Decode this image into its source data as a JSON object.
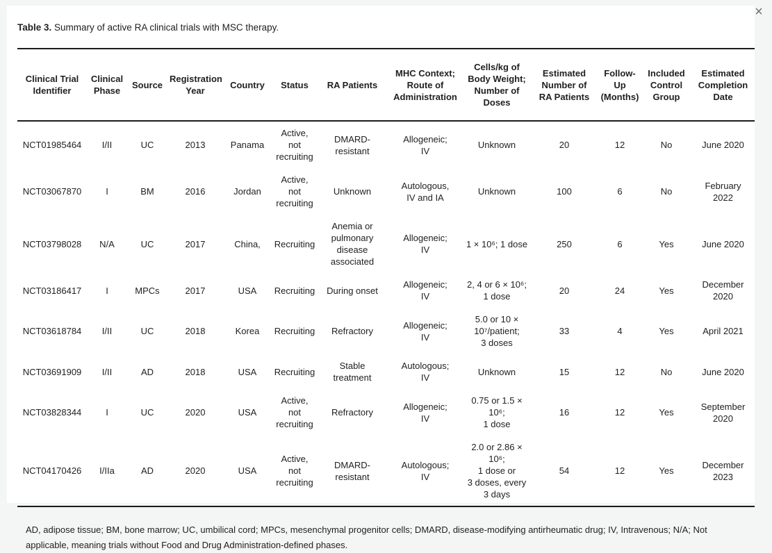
{
  "colors": {
    "page_background": "#f4f5f5",
    "panel_background": "#ffffff",
    "table_rule": "#1b1b1b",
    "text": "#212121",
    "close_icon": "#6e6e6e"
  },
  "modal": {
    "close_icon": "×"
  },
  "caption": {
    "label": "Table 3.",
    "text": " Summary of active RA clinical trials with MSC therapy."
  },
  "table": {
    "columns": [
      "Clinical Trial\nIdentifier",
      "Clinical\nPhase",
      "Source",
      "Registration\nYear",
      "Country",
      "Status",
      "RA Patients",
      "MHC Context;\nRoute of\nAdministration",
      "Cells/kg of\nBody Weight;\nNumber of\nDoses",
      "Estimated\nNumber of\nRA Patients",
      "Follow-\nUp\n(Months)",
      "Included\nControl\nGroup",
      "Estimated\nCompletion\nDate"
    ],
    "rows": [
      [
        "NCT01985464",
        "I/II",
        "UC",
        "2013",
        "Panama",
        "Active, not\nrecruiting",
        "DMARD-\nresistant",
        "Allogeneic;\nIV",
        "Unknown",
        "20",
        "12",
        "No",
        "June 2020"
      ],
      [
        "NCT03067870",
        "I",
        "BM",
        "2016",
        "Jordan",
        "Active, not\nrecruiting",
        "Unknown",
        "Autologous,\nIV and IA",
        "Unknown",
        "100",
        "6",
        "No",
        "February\n2022"
      ],
      [
        "NCT03798028",
        "N/A",
        "UC",
        "2017",
        "China,",
        "Recruiting",
        "Anemia or\npulmonary\ndisease\nassociated",
        "Allogeneic;\nIV",
        "1 × 10⁶; 1 dose",
        "250",
        "6",
        "Yes",
        "June 2020"
      ],
      [
        "NCT03186417",
        "I",
        "MPCs",
        "2017",
        "USA",
        "Recruiting",
        "During onset",
        "Allogeneic;\nIV",
        "2, 4 or 6 × 10⁶;\n1 dose",
        "20",
        "24",
        "Yes",
        "December\n2020"
      ],
      [
        "NCT03618784",
        "I/II",
        "UC",
        "2018",
        "Korea",
        "Recruiting",
        "Refractory",
        "Allogeneic;\nIV",
        "5.0 or 10 ×\n10⁷/patient;\n3 doses",
        "33",
        "4",
        "Yes",
        "April 2021"
      ],
      [
        "NCT03691909",
        "I/II",
        "AD",
        "2018",
        "USA",
        "Recruiting",
        "Stable\ntreatment",
        "Autologous;\nIV",
        "Unknown",
        "15",
        "12",
        "No",
        "June 2020"
      ],
      [
        "NCT03828344",
        "I",
        "UC",
        "2020",
        "USA",
        "Active, not\nrecruiting",
        "Refractory",
        "Allogeneic;\nIV",
        "0.75 or 1.5 ×\n10⁶;\n1 dose",
        "16",
        "12",
        "Yes",
        "September\n2020"
      ],
      [
        "NCT04170426",
        "I/IIa",
        "AD",
        "2020",
        "USA",
        "Active, not\nrecruiting",
        "DMARD-\nresistant",
        "Autologous;\nIV",
        "2.0 or 2.86 ×\n10⁶;\n1 dose or\n3 doses, every\n3 days",
        "54",
        "12",
        "Yes",
        "December\n2023"
      ]
    ]
  },
  "footnote": "AD, adipose tissue; BM, bone marrow; UC, umbilical cord; MPCs, mesenchymal progenitor cells; DMARD, disease-modifying antirheumatic drug; IV, Intravenous; N/A; Not applicable, meaning trials without Food and Drug Administration-defined phases."
}
